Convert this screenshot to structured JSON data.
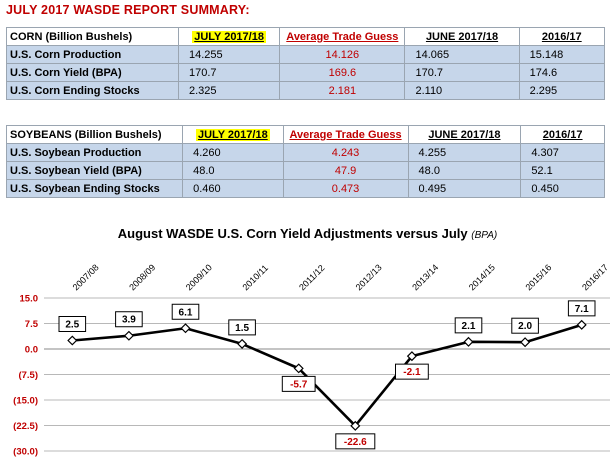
{
  "report_title": "JULY 2017 WASDE REPORT SUMMARY:",
  "corn_table": {
    "headers": [
      "CORN (Billion Bushels)",
      "JULY 2017/18",
      "Average Trade Guess",
      "JUNE 2017/18",
      "2016/17"
    ],
    "rows": [
      {
        "label": "U.S. Corn Production",
        "july": "14.255",
        "guess": "14.126",
        "june": "14.065",
        "prior": "15.148"
      },
      {
        "label": "U.S. Corn Yield (BPA)",
        "july": "170.7",
        "guess": "169.6",
        "june": "170.7",
        "prior": "174.6"
      },
      {
        "label": "U.S. Corn Ending Stocks",
        "july": "2.325",
        "guess": "2.181",
        "june": "2.110",
        "prior": "2.295"
      }
    ]
  },
  "soy_table": {
    "headers": [
      "SOYBEANS (Billion Bushels)",
      "JULY 2017/18",
      "Average Trade Guess",
      "JUNE 2017/18",
      "2016/17"
    ],
    "rows": [
      {
        "label": "U.S. Soybean Production",
        "july": "4.260",
        "guess": "4.243",
        "june": "4.255",
        "prior": "4.307"
      },
      {
        "label": "U.S. Soybean Yield (BPA)",
        "july": "48.0",
        "guess": "47.9",
        "june": "48.0",
        "prior": "52.1"
      },
      {
        "label": "U.S. Soybean Ending Stocks",
        "july": "0.460",
        "guess": "0.473",
        "june": "0.495",
        "prior": "0.450"
      }
    ]
  },
  "colors": {
    "accent_red": "#c00000",
    "row_fill": "#c6d6ea",
    "highlight": "#ffff00"
  },
  "chart_data": {
    "type": "line",
    "title": "August WASDE U.S. Corn Yield Adjustments versus July",
    "title_unit": "(BPA)",
    "xlabel": "",
    "ylabel": "",
    "categories": [
      "2007/08",
      "2008/09",
      "2009/10",
      "2010/11",
      "2011/12",
      "2012/13",
      "2013/14",
      "2014/15",
      "2015/16",
      "2016/17"
    ],
    "series": [
      {
        "values": [
          2.5,
          3.9,
          6.1,
          1.5,
          -5.7,
          -22.6,
          -2.1,
          2.1,
          2.0,
          7.1
        ]
      }
    ],
    "data_labels": [
      "2.5",
      "3.9",
      "6.1",
      "1.5",
      "-5.7",
      "-22.6",
      "-2.1",
      "2.1",
      "2.0",
      "7.1"
    ],
    "y_ticks": [
      15.0,
      7.5,
      0.0,
      -7.5,
      -15.0,
      -22.5,
      -30.0
    ],
    "y_tick_labels": [
      "15.0",
      "7.5",
      "0.0",
      "(7.5)",
      "(15.0)",
      "(22.5)",
      "(30.0)"
    ],
    "ylim": [
      -30,
      15
    ],
    "grid": true,
    "legend": "none"
  }
}
